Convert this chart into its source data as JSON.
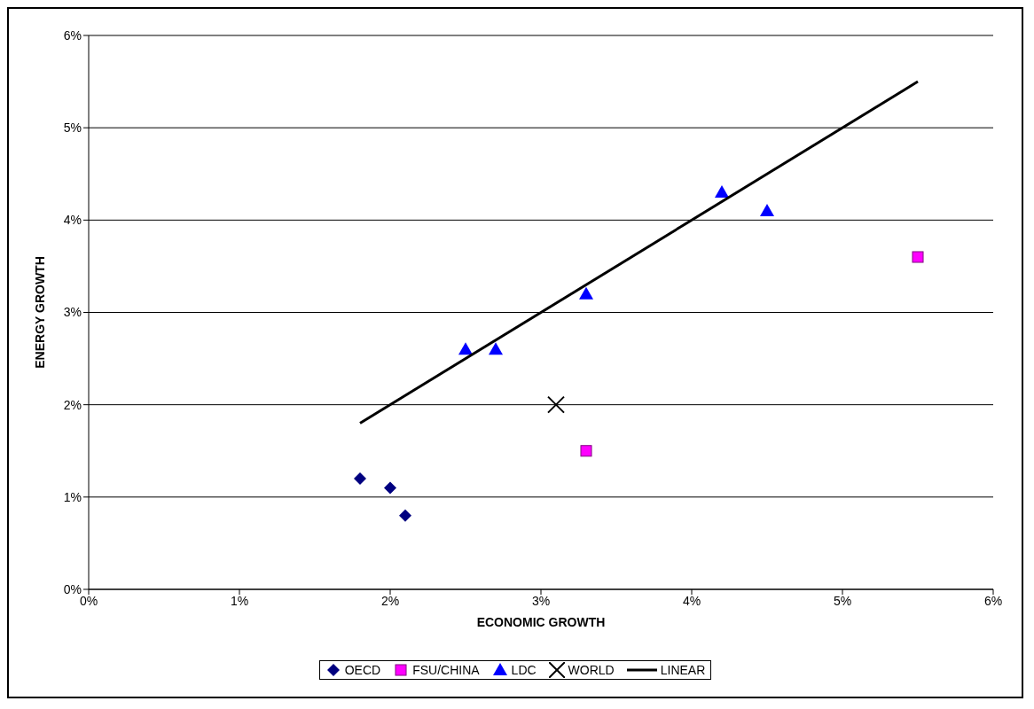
{
  "chart_data": {
    "type": "scatter",
    "xlabel": "ECONOMIC GROWTH",
    "ylabel": "ENERGY GROWTH",
    "xlim": [
      0,
      6
    ],
    "ylim": [
      0,
      6
    ],
    "xticks": [
      {
        "value": 0,
        "label": "0%"
      },
      {
        "value": 1,
        "label": "1%"
      },
      {
        "value": 2,
        "label": "2%"
      },
      {
        "value": 3,
        "label": "3%"
      },
      {
        "value": 4,
        "label": "4%"
      },
      {
        "value": 5,
        "label": "5%"
      },
      {
        "value": 6,
        "label": "6%"
      }
    ],
    "yticks": [
      {
        "value": 0,
        "label": "0%"
      },
      {
        "value": 1,
        "label": "1%"
      },
      {
        "value": 2,
        "label": "2%"
      },
      {
        "value": 3,
        "label": "3%"
      },
      {
        "value": 4,
        "label": "4%"
      },
      {
        "value": 5,
        "label": "5%"
      },
      {
        "value": 6,
        "label": "6%"
      }
    ],
    "grid": "y",
    "legend": "bottom",
    "series": [
      {
        "name": "OECD",
        "type": "scatter",
        "marker": "diamond",
        "color": "#000080",
        "x": [
          1.8,
          2.0,
          2.1
        ],
        "values": [
          1.2,
          1.1,
          0.8
        ]
      },
      {
        "name": "FSU/CHINA",
        "type": "scatter",
        "marker": "square",
        "color": "#ff00ff",
        "x": [
          3.3,
          5.5
        ],
        "values": [
          1.5,
          3.6
        ]
      },
      {
        "name": "LDC",
        "type": "scatter",
        "marker": "triangle",
        "color": "#0000ff",
        "x": [
          2.5,
          2.7,
          3.3,
          4.2,
          4.5
        ],
        "values": [
          2.6,
          2.6,
          3.2,
          4.3,
          4.1
        ]
      },
      {
        "name": "WORLD",
        "type": "scatter",
        "marker": "cross",
        "color": "#000000",
        "x": [
          3.1
        ],
        "values": [
          2.0
        ]
      },
      {
        "name": "LINEAR",
        "type": "line",
        "marker": "none",
        "line_style": "solid",
        "color": "#000000",
        "x": [
          1.8,
          5.5
        ],
        "values": [
          1.8,
          5.5
        ]
      }
    ]
  }
}
